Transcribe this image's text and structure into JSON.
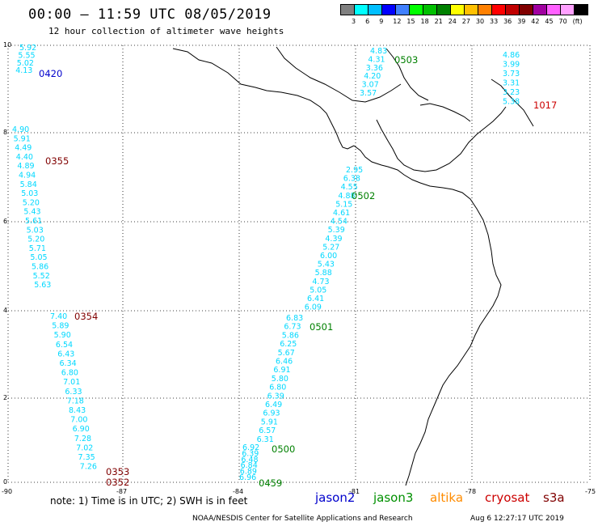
{
  "header": {
    "title": "00:00 – 11:59 UTC 08/05/2019",
    "subtitle": "12 hour collection of altimeter wave heights"
  },
  "color_scale": {
    "colors": [
      "#808080",
      "#00ffff",
      "#00bfff",
      "#0000ff",
      "#4080ff",
      "#00ff00",
      "#00c000",
      "#008000",
      "#ffff00",
      "#ffc000",
      "#ff8000",
      "#ff0000",
      "#c00000",
      "#800000",
      "#a000a0",
      "#ff60ff",
      "#ffa0ff",
      "#000000"
    ],
    "labels": [
      "3",
      "6",
      "9",
      "12",
      "15",
      "18",
      "21",
      "24",
      "27",
      "30",
      "33",
      "36",
      "39",
      "42",
      "45",
      "70",
      "(ft)"
    ]
  },
  "axes": {
    "x_ticks": [
      "-90",
      "-87",
      "-84",
      "-81",
      "-78",
      "-75"
    ],
    "y_ticks": [
      "0",
      "2",
      "4",
      "6",
      "8",
      "10"
    ]
  },
  "tracks": [
    {
      "id": "t0420",
      "time": "0420",
      "satellite": "jason2",
      "color": "#00d8ff",
      "values": [
        "5.92",
        "5.55",
        "5.02",
        "4.13"
      ]
    },
    {
      "id": "t0355",
      "time": "0355",
      "satellite": "cryosat",
      "color": "#00d8ff",
      "values": [
        "4.90",
        "5.91",
        "4.49",
        "4.40",
        "4.89",
        "4.94",
        "5.84",
        "5.03",
        "5.20",
        "5.43",
        "5.61",
        "5.03",
        "5.20",
        "5.71",
        "5.05",
        "5.86",
        "5.52",
        "5.63"
      ]
    },
    {
      "id": "t0354",
      "time": "0354",
      "satellite": "cryosat",
      "color": "#00d8ff",
      "values": [
        "7.40",
        "5.89",
        "5.90",
        "6.54",
        "6.43",
        "6.34",
        "6.80",
        "7.01",
        "6.33",
        "7.18",
        "8.43",
        "7.00",
        "6.90",
        "7.28",
        "7.02",
        "7.35",
        "7.26"
      ]
    },
    {
      "id": "t0353",
      "time": "0353",
      "satellite": "cryosat"
    },
    {
      "id": "t0352",
      "time": "0352",
      "satellite": "cryosat"
    },
    {
      "id": "t0503",
      "time": "0503",
      "satellite": "jason3",
      "color": "#00d8ff",
      "values": [
        "4.83",
        "4.31",
        "3.36",
        "4.20",
        "3.07",
        "3.57"
      ]
    },
    {
      "id": "t1017",
      "time": "1017",
      "satellite": "s3a",
      "color": "#00d8ff",
      "values": [
        "4.86",
        "3.99",
        "3.73",
        "3.31",
        "3.23",
        "5.38"
      ]
    },
    {
      "id": "t0502",
      "time": "0502",
      "satellite": "jason3",
      "color": "#00d8ff",
      "values": [
        "2.95",
        "6.38",
        "4.55",
        "4.88",
        "5.15",
        "4.61",
        "4.54",
        "5.39",
        "4.39",
        "5.27",
        "6.00",
        "5.43",
        "5.88",
        "4.73",
        "5.05",
        "6.41",
        "6.09"
      ]
    },
    {
      "id": "t0501",
      "time": "0501",
      "satellite": "jason3",
      "color": "#00d8ff",
      "values": [
        "6.83",
        "6.73",
        "5.86",
        "6.25",
        "5.67",
        "6.46",
        "6.91",
        "5.80",
        "6.80",
        "6.39",
        "6.49",
        "6.93",
        "5.91",
        "6.57",
        "6.31"
      ]
    },
    {
      "id": "t0500",
      "time": "0500",
      "satellite": "jason3",
      "color": "#00d8ff",
      "values": [
        "6.92",
        "6.39",
        "6.48",
        "6.84",
        "6.89",
        "6.96"
      ]
    },
    {
      "id": "t0459",
      "time": "0459",
      "satellite": "jason3"
    }
  ],
  "footer": {
    "note": "note: 1) Time is in UTC; 2) SWH is in feet",
    "credit": "NOAA/NESDIS Center for Satellite Applications and Research",
    "timestamp": "Aug  6 12:27:17 UTC 2019"
  },
  "legend": [
    {
      "name": "jason2",
      "color": "#0000cc"
    },
    {
      "name": "jason3",
      "color": "#009000"
    },
    {
      "name": "altika",
      "color": "#ff8c00"
    },
    {
      "name": "cryosat",
      "color": "#cc0000"
    },
    {
      "name": "s3a",
      "color": "#800000"
    }
  ]
}
